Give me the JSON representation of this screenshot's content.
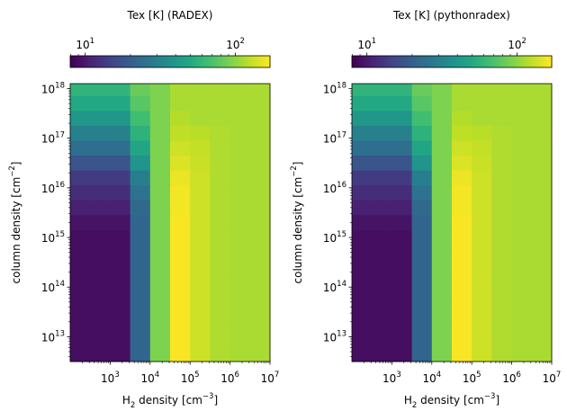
{
  "colormap": "viridis",
  "chart_data": [
    {
      "type": "heatmap",
      "title": "Tex [K] (RADEX)",
      "xlabel": "H2 density [cm-3]",
      "ylabel": "column density [cm-2]",
      "xscale": "log",
      "yscale": "log",
      "x_edges_log10": [
        2.0,
        2.5,
        3.0,
        3.5,
        4.0,
        4.5,
        5.0,
        5.5,
        6.0,
        6.5,
        7.0
      ],
      "y_centers_log10": [
        12.5,
        13.0,
        13.5,
        14.0,
        14.5,
        15.0,
        15.3,
        15.6,
        15.9,
        16.2,
        16.5,
        16.8,
        17.1,
        17.4,
        17.7,
        18.0
      ],
      "xlim_log10": [
        2.0,
        7.0
      ],
      "ylim_log10": [
        12.5,
        18.1
      ],
      "x_ticks": [
        {
          "base": "10",
          "exp": "3",
          "log": 3
        },
        {
          "base": "10",
          "exp": "4",
          "log": 4
        },
        {
          "base": "10",
          "exp": "5",
          "log": 5
        },
        {
          "base": "10",
          "exp": "6",
          "log": 6
        },
        {
          "base": "10",
          "exp": "7",
          "log": 7
        }
      ],
      "y_ticks": [
        {
          "base": "10",
          "exp": "13",
          "log": 13
        },
        {
          "base": "10",
          "exp": "14",
          "log": 14
        },
        {
          "base": "10",
          "exp": "15",
          "log": 15
        },
        {
          "base": "10",
          "exp": "16",
          "log": 16
        },
        {
          "base": "10",
          "exp": "17",
          "log": 17
        },
        {
          "base": "10",
          "exp": "18",
          "log": 18
        }
      ],
      "values_log10_K_rows_top_to_bottom": [
        [
          1.76,
          1.76,
          1.76,
          1.92,
          1.97,
          2.06,
          2.06,
          2.06,
          2.06,
          2.06
        ],
        [
          1.7,
          1.7,
          1.7,
          1.88,
          1.97,
          2.06,
          2.06,
          2.06,
          2.06,
          2.06
        ],
        [
          1.6,
          1.6,
          1.6,
          1.82,
          1.97,
          2.08,
          2.06,
          2.06,
          2.06,
          2.06
        ],
        [
          1.48,
          1.48,
          1.48,
          1.75,
          1.97,
          2.1,
          2.09,
          2.07,
          2.06,
          2.06
        ],
        [
          1.38,
          1.38,
          1.38,
          1.68,
          1.97,
          2.13,
          2.11,
          2.07,
          2.06,
          2.06
        ],
        [
          1.25,
          1.25,
          1.25,
          1.58,
          1.97,
          2.16,
          2.12,
          2.07,
          2.06,
          2.06
        ],
        [
          1.13,
          1.13,
          1.13,
          1.47,
          1.97,
          2.19,
          2.13,
          2.07,
          2.06,
          2.06
        ],
        [
          1.07,
          1.07,
          1.07,
          1.4,
          1.97,
          2.21,
          2.13,
          2.07,
          2.06,
          2.06
        ],
        [
          1.02,
          1.02,
          1.02,
          1.35,
          1.97,
          2.21,
          2.13,
          2.07,
          2.06,
          2.06
        ],
        [
          0.97,
          0.97,
          0.97,
          1.33,
          1.97,
          2.22,
          2.13,
          2.07,
          2.06,
          2.06
        ],
        [
          0.95,
          0.95,
          0.95,
          1.33,
          1.97,
          2.22,
          2.13,
          2.07,
          2.06,
          2.06
        ],
        [
          0.95,
          0.95,
          0.95,
          1.33,
          1.97,
          2.22,
          2.13,
          2.07,
          2.06,
          2.06
        ],
        [
          0.95,
          0.95,
          0.95,
          1.33,
          1.97,
          2.22,
          2.13,
          2.07,
          2.06,
          2.06
        ],
        [
          0.95,
          0.95,
          0.95,
          1.33,
          1.97,
          2.22,
          2.13,
          2.07,
          2.06,
          2.06
        ],
        [
          0.95,
          0.95,
          0.95,
          1.33,
          1.97,
          2.22,
          2.13,
          2.07,
          2.06,
          2.06
        ],
        [
          0.95,
          0.95,
          0.95,
          1.33,
          1.97,
          2.22,
          2.13,
          2.07,
          2.06,
          2.06
        ]
      ],
      "colorbar": {
        "location": "top",
        "scale": "log",
        "vmin_log10": 0.9,
        "vmax_log10": 2.23,
        "ticks": [
          {
            "base": "10",
            "exp": "1",
            "log": 1
          },
          {
            "base": "10",
            "exp": "2",
            "log": 2
          }
        ]
      }
    },
    {
      "type": "heatmap",
      "title": "Tex [K] (pythonradex)",
      "xlabel": "H2 density [cm-3]",
      "ylabel": "column density [cm-2]",
      "xscale": "log",
      "yscale": "log",
      "x_edges_log10": [
        2.0,
        2.5,
        3.0,
        3.5,
        4.0,
        4.5,
        5.0,
        5.5,
        6.0,
        6.5,
        7.0
      ],
      "y_centers_log10": [
        12.5,
        13.0,
        13.5,
        14.0,
        14.5,
        15.0,
        15.3,
        15.6,
        15.9,
        16.2,
        16.5,
        16.8,
        17.1,
        17.4,
        17.7,
        18.0
      ],
      "xlim_log10": [
        2.0,
        7.0
      ],
      "ylim_log10": [
        12.5,
        18.1
      ],
      "x_ticks": [
        {
          "base": "10",
          "exp": "3",
          "log": 3
        },
        {
          "base": "10",
          "exp": "4",
          "log": 4
        },
        {
          "base": "10",
          "exp": "5",
          "log": 5
        },
        {
          "base": "10",
          "exp": "6",
          "log": 6
        },
        {
          "base": "10",
          "exp": "7",
          "log": 7
        }
      ],
      "y_ticks": [
        {
          "base": "10",
          "exp": "13",
          "log": 13
        },
        {
          "base": "10",
          "exp": "14",
          "log": 14
        },
        {
          "base": "10",
          "exp": "15",
          "log": 15
        },
        {
          "base": "10",
          "exp": "16",
          "log": 16
        },
        {
          "base": "10",
          "exp": "17",
          "log": 17
        },
        {
          "base": "10",
          "exp": "18",
          "log": 18
        }
      ],
      "values_log10_K_rows_top_to_bottom": [
        [
          1.76,
          1.76,
          1.76,
          1.92,
          1.97,
          2.06,
          2.06,
          2.06,
          2.06,
          2.06
        ],
        [
          1.7,
          1.7,
          1.7,
          1.88,
          1.97,
          2.06,
          2.06,
          2.06,
          2.06,
          2.06
        ],
        [
          1.6,
          1.6,
          1.6,
          1.82,
          1.97,
          2.08,
          2.06,
          2.06,
          2.06,
          2.06
        ],
        [
          1.48,
          1.48,
          1.48,
          1.75,
          1.97,
          2.1,
          2.09,
          2.07,
          2.06,
          2.06
        ],
        [
          1.38,
          1.38,
          1.38,
          1.68,
          1.97,
          2.13,
          2.11,
          2.07,
          2.06,
          2.06
        ],
        [
          1.25,
          1.25,
          1.25,
          1.58,
          1.97,
          2.16,
          2.12,
          2.07,
          2.06,
          2.06
        ],
        [
          1.13,
          1.13,
          1.13,
          1.47,
          1.97,
          2.19,
          2.13,
          2.07,
          2.06,
          2.06
        ],
        [
          1.07,
          1.07,
          1.07,
          1.4,
          1.97,
          2.21,
          2.13,
          2.07,
          2.06,
          2.06
        ],
        [
          1.02,
          1.02,
          1.02,
          1.35,
          1.97,
          2.21,
          2.13,
          2.07,
          2.06,
          2.06
        ],
        [
          0.97,
          0.97,
          0.97,
          1.33,
          1.97,
          2.22,
          2.13,
          2.07,
          2.06,
          2.06
        ],
        [
          0.95,
          0.95,
          0.95,
          1.33,
          1.97,
          2.22,
          2.13,
          2.07,
          2.06,
          2.06
        ],
        [
          0.95,
          0.95,
          0.95,
          1.33,
          1.97,
          2.22,
          2.13,
          2.07,
          2.06,
          2.06
        ],
        [
          0.95,
          0.95,
          0.95,
          1.33,
          1.97,
          2.22,
          2.13,
          2.07,
          2.06,
          2.06
        ],
        [
          0.95,
          0.95,
          0.95,
          1.33,
          1.97,
          2.22,
          2.13,
          2.07,
          2.06,
          2.06
        ],
        [
          0.95,
          0.95,
          0.95,
          1.33,
          1.97,
          2.22,
          2.13,
          2.07,
          2.06,
          2.06
        ],
        [
          0.95,
          0.95,
          0.95,
          1.33,
          1.97,
          2.22,
          2.13,
          2.07,
          2.06,
          2.06
        ]
      ],
      "colorbar": {
        "location": "top",
        "scale": "log",
        "vmin_log10": 0.9,
        "vmax_log10": 2.23,
        "ticks": [
          {
            "base": "10",
            "exp": "1",
            "log": 1
          },
          {
            "base": "10",
            "exp": "2",
            "log": 2
          }
        ]
      }
    }
  ]
}
